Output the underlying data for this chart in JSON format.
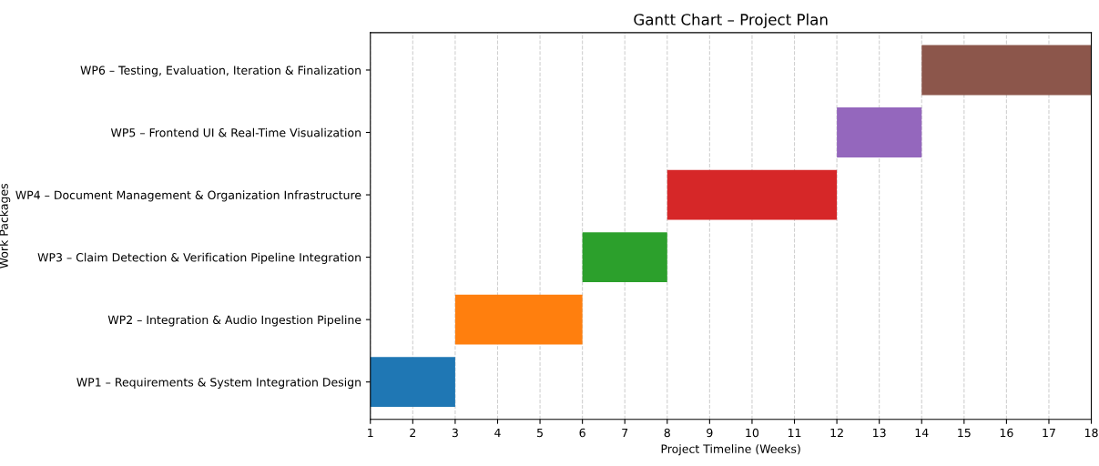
{
  "chart_data": {
    "type": "bar",
    "orientation": "horizontal",
    "title": "Gantt Chart – Project Plan",
    "xlabel": "Project Timeline (Weeks)",
    "ylabel": "Work Packages",
    "categories": [
      "WP6 – Testing, Evaluation, Iteration & Finalization",
      "WP5 – Frontend UI & Real-Time Visualization",
      "WP4 – Document Management & Organization Infrastructure",
      "WP3 – Claim Detection & Verification Pipeline Integration",
      "WP2 – Integration & Audio Ingestion Pipeline",
      "WP1 – Requirements & System Integration Design"
    ],
    "base": [
      14,
      12,
      8,
      6,
      3,
      1
    ],
    "values": [
      4,
      2,
      4,
      2,
      3,
      2
    ],
    "colors": [
      "#8c564b",
      "#9467bd",
      "#d62728",
      "#2ca02c",
      "#ff7f0e",
      "#1f77b4"
    ],
    "xlim": [
      1,
      18
    ],
    "xticks": [
      1,
      2,
      3,
      4,
      5,
      6,
      7,
      8,
      9,
      10,
      11,
      12,
      13,
      14,
      15,
      16,
      17,
      18
    ],
    "grid": "x",
    "line_style": "dashed"
  }
}
